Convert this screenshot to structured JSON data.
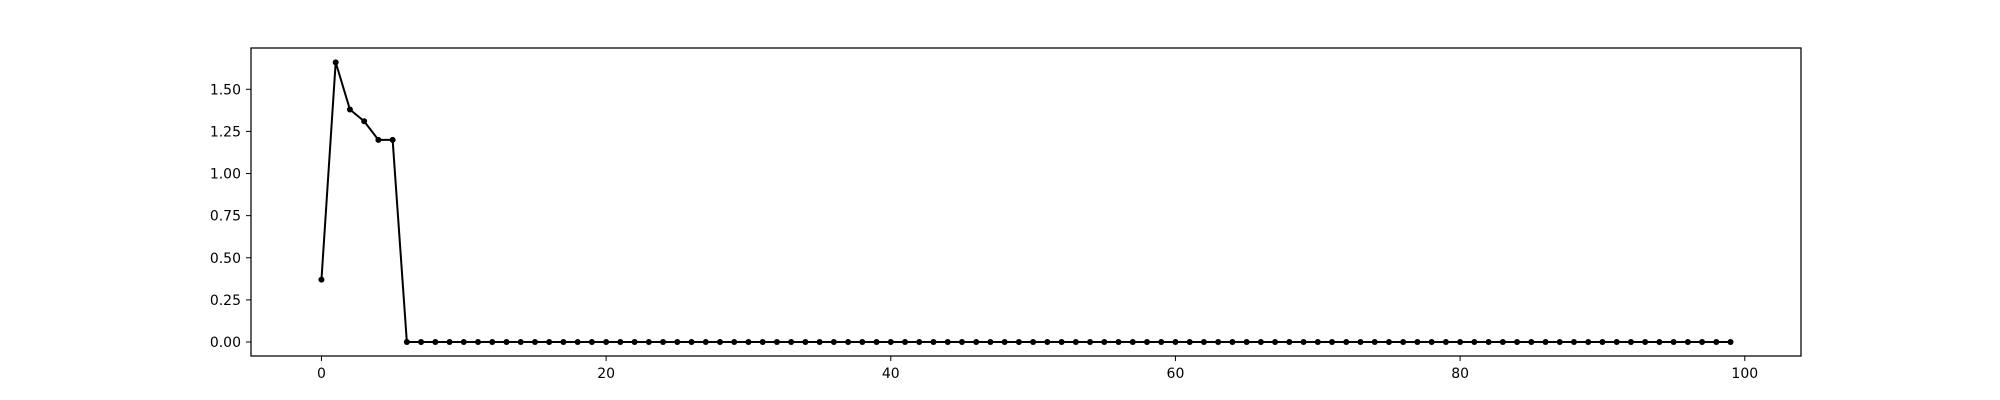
{
  "chart_data": {
    "type": "line",
    "title": "",
    "xlabel": "",
    "ylabel": "",
    "xlim": [
      -4.95,
      103.95
    ],
    "ylim": [
      -0.083,
      1.745
    ],
    "grid": false,
    "legend": "none",
    "series": [
      {
        "color": "#000000",
        "marker": "circle",
        "x": [
          0,
          1,
          2,
          3,
          4,
          5,
          6,
          7,
          8,
          9,
          10,
          11,
          12,
          13,
          14,
          15,
          16,
          17,
          18,
          19,
          20,
          21,
          22,
          23,
          24,
          25,
          26,
          27,
          28,
          29,
          30,
          31,
          32,
          33,
          34,
          35,
          36,
          37,
          38,
          39,
          40,
          41,
          42,
          43,
          44,
          45,
          46,
          47,
          48,
          49,
          50,
          51,
          52,
          53,
          54,
          55,
          56,
          57,
          58,
          59,
          60,
          61,
          62,
          63,
          64,
          65,
          66,
          67,
          68,
          69,
          70,
          71,
          72,
          73,
          74,
          75,
          76,
          77,
          78,
          79,
          80,
          81,
          82,
          83,
          84,
          85,
          86,
          87,
          88,
          89,
          90,
          91,
          92,
          93,
          94,
          95,
          96,
          97,
          98,
          99
        ],
        "y": [
          0.37,
          1.66,
          1.38,
          1.31,
          1.2,
          1.2,
          0,
          0,
          0,
          0,
          0,
          0,
          0,
          0,
          0,
          0,
          0,
          0,
          0,
          0,
          0,
          0,
          0,
          0,
          0,
          0,
          0,
          0,
          0,
          0,
          0,
          0,
          0,
          0,
          0,
          0,
          0,
          0,
          0,
          0,
          0,
          0,
          0,
          0,
          0,
          0,
          0,
          0,
          0,
          0,
          0,
          0,
          0,
          0,
          0,
          0,
          0,
          0,
          0,
          0,
          0,
          0,
          0,
          0,
          0,
          0,
          0,
          0,
          0,
          0,
          0,
          0,
          0,
          0,
          0,
          0,
          0,
          0,
          0,
          0,
          0,
          0,
          0,
          0,
          0,
          0,
          0,
          0,
          0,
          0,
          0,
          0,
          0,
          0,
          0,
          0,
          0,
          0,
          0,
          0
        ]
      }
    ],
    "x_ticks": [
      {
        "value": 0,
        "label": "0"
      },
      {
        "value": 20,
        "label": "20"
      },
      {
        "value": 40,
        "label": "40"
      },
      {
        "value": 60,
        "label": "60"
      },
      {
        "value": 80,
        "label": "80"
      },
      {
        "value": 100,
        "label": "100"
      }
    ],
    "y_ticks": [
      {
        "value": 0,
        "label": "0.00"
      },
      {
        "value": 0.25,
        "label": "0.25"
      },
      {
        "value": 0.5,
        "label": "0.50"
      },
      {
        "value": 0.75,
        "label": "0.75"
      },
      {
        "value": 1.0,
        "label": "1.00"
      },
      {
        "value": 1.25,
        "label": "1.25"
      },
      {
        "value": 1.5,
        "label": "1.50"
      }
    ]
  }
}
